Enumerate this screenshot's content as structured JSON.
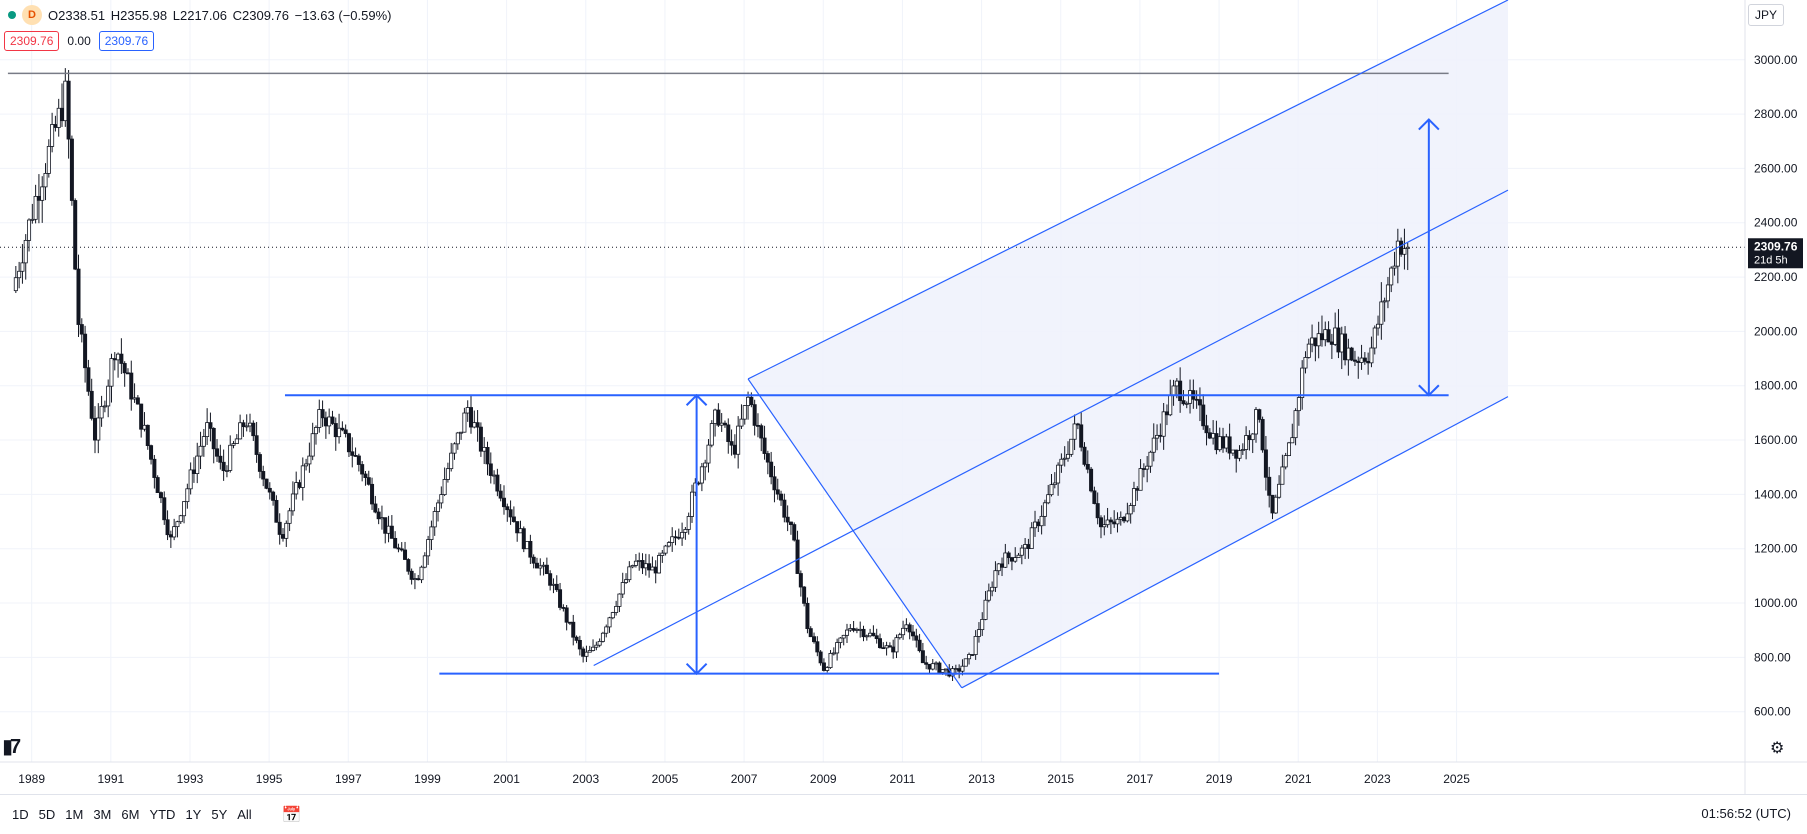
{
  "legend": {
    "interval_badge": "D",
    "open": "O2338.51",
    "high": "H2355.98",
    "low": "L2217.06",
    "close": "C2309.76",
    "change": "−13.63 (−0.59%)"
  },
  "quote": {
    "bid": "2309.76",
    "spread": "0.00",
    "ask": "2309.76"
  },
  "currency": "JPY",
  "price_label": {
    "price": "2309.76",
    "countdown": "21d 5h"
  },
  "timeframes": [
    "1D",
    "5D",
    "1M",
    "3M",
    "6M",
    "YTD",
    "1Y",
    "5Y",
    "All"
  ],
  "clock": "01:56:52 (UTC)",
  "icons": {
    "logo": "tradingview-logo-icon",
    "settings": "gear-icon",
    "date_range": "calendar-icon"
  },
  "colors": {
    "up": "#089981",
    "drawing": "#2962ff",
    "channel_fill": "#eef1fb",
    "candle": "#131722"
  },
  "chart_data": {
    "type": "candlestick",
    "x_range": [
      1988.2,
      2026.3
    ],
    "y_range": [
      540,
      3220
    ],
    "x_ticks": [
      1989,
      1991,
      1993,
      1995,
      1997,
      1999,
      2001,
      2003,
      2005,
      2007,
      2009,
      2011,
      2013,
      2015,
      2017,
      2019,
      2021,
      2023,
      2025
    ],
    "y_ticks": [
      600,
      800,
      1000,
      1200,
      1400,
      1600,
      1800,
      2000,
      2200,
      2400,
      2600,
      2800,
      3000
    ],
    "y_tick_format": "0.00",
    "last_price": 2309.76,
    "anchors": [
      [
        1988.6,
        2150
      ],
      [
        1989.2,
        2500
      ],
      [
        1989.95,
        2880
      ],
      [
        1990.25,
        2050
      ],
      [
        1990.7,
        1600
      ],
      [
        1991.2,
        1950
      ],
      [
        1991.9,
        1650
      ],
      [
        1992.6,
        1230
      ],
      [
        1993.5,
        1650
      ],
      [
        1993.9,
        1480
      ],
      [
        1994.5,
        1680
      ],
      [
        1995.4,
        1250
      ],
      [
        1996.4,
        1700
      ],
      [
        1997.0,
        1600
      ],
      [
        1997.4,
        1500
      ],
      [
        1998.0,
        1280
      ],
      [
        1998.8,
        1080
      ],
      [
        1999.5,
        1450
      ],
      [
        2000.1,
        1720
      ],
      [
        2000.5,
        1550
      ],
      [
        2001.6,
        1200
      ],
      [
        2002.2,
        1080
      ],
      [
        2003.0,
        800
      ],
      [
        2003.3,
        830
      ],
      [
        2004.3,
        1150
      ],
      [
        2004.8,
        1120
      ],
      [
        2005.6,
        1300
      ],
      [
        2006.4,
        1700
      ],
      [
        2006.8,
        1550
      ],
      [
        2007.2,
        1760
      ],
      [
        2007.6,
        1550
      ],
      [
        2008.3,
        1250
      ],
      [
        2008.7,
        900
      ],
      [
        2009.1,
        760
      ],
      [
        2009.8,
        920
      ],
      [
        2010.3,
        880
      ],
      [
        2010.8,
        820
      ],
      [
        2011.2,
        940
      ],
      [
        2011.6,
        780
      ],
      [
        2012.4,
        740
      ],
      [
        2012.8,
        800
      ],
      [
        2013.5,
        1150
      ],
      [
        2014.2,
        1200
      ],
      [
        2014.8,
        1400
      ],
      [
        2015.5,
        1660
      ],
      [
        2016.1,
        1280
      ],
      [
        2016.6,
        1300
      ],
      [
        2017.2,
        1500
      ],
      [
        2018.0,
        1800
      ],
      [
        2018.5,
        1720
      ],
      [
        2019.0,
        1600
      ],
      [
        2019.6,
        1560
      ],
      [
        2020.1,
        1700
      ],
      [
        2020.4,
        1300
      ],
      [
        2020.9,
        1600
      ],
      [
        2021.3,
        1950
      ],
      [
        2021.9,
        2000
      ],
      [
        2022.5,
        1900
      ],
      [
        2022.9,
        1920
      ],
      [
        2023.4,
        2200
      ],
      [
        2023.6,
        2330
      ],
      [
        2023.8,
        2309.76
      ]
    ],
    "drawings": {
      "horizontal_lines": [
        {
          "from": 1988.4,
          "to": 2024.8,
          "y": 2950,
          "color": "#787b86",
          "width": 1.5
        },
        {
          "from": 1995.4,
          "to": 2024.8,
          "y": 1765,
          "color": "#2962ff",
          "width": 2
        },
        {
          "from": 1999.3,
          "to": 2019.0,
          "y": 740,
          "color": "#2962ff",
          "width": 2
        }
      ],
      "arrows": [
        {
          "x": 2005.8,
          "y1": 1765,
          "y2": 740
        },
        {
          "x": 2024.3,
          "y1": 2780,
          "y2": 1765
        }
      ],
      "pitchfork": {
        "pivot": [
          2003.2,
          770
        ],
        "top": [
          2007.1,
          1825
        ],
        "bottom": [
          2012.5,
          688
        ],
        "upper_end": [
          2026.3,
          3220
        ],
        "middle_end": [
          2026.3,
          2520
        ],
        "lower_end": [
          2026.3,
          1760
        ]
      }
    }
  }
}
